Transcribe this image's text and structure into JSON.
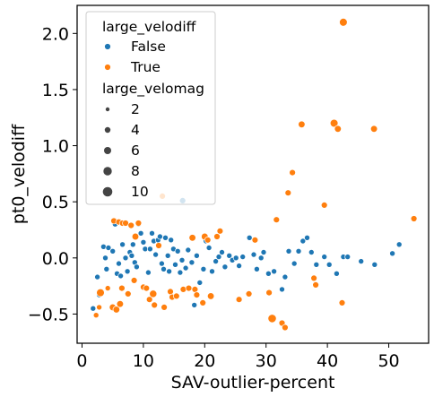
{
  "chart_data": {
    "type": "scatter",
    "xlabel": "SAV-outlier-percent",
    "ylabel": "pt0_velodiff",
    "xlim": [
      -0.8,
      56.5
    ],
    "ylim": [
      -0.76,
      2.25
    ],
    "xticks": [
      0,
      10,
      20,
      30,
      40,
      50
    ],
    "yticks": [
      -0.5,
      0.0,
      0.5,
      1.0,
      1.5,
      2.0
    ],
    "xtick_labels": [
      "0",
      "10",
      "20",
      "30",
      "40",
      "50"
    ],
    "ytick_labels": [
      "−0.5",
      "0.0",
      "0.5",
      "1.0",
      "1.5",
      "2.0"
    ],
    "grid": false,
    "legend": {
      "placement": "top-left",
      "hue_title": "large_velodiff",
      "hue_entries": [
        {
          "label": "False",
          "color": "#1f77b4"
        },
        {
          "label": "True",
          "color": "#ff7f0e"
        }
      ],
      "size_title": "large_velomag",
      "size_entries": [
        {
          "label": "2",
          "size": 2
        },
        {
          "label": "4",
          "size": 4
        },
        {
          "label": "6",
          "size": 6
        },
        {
          "label": "8",
          "size": 8
        },
        {
          "label": "10",
          "size": 10
        }
      ]
    },
    "series": [
      {
        "name": "False",
        "color": "#1f77b4",
        "points": [
          [
            1.8,
            -0.45,
            2
          ],
          [
            2.5,
            -0.17,
            2
          ],
          [
            2.8,
            -0.33,
            2
          ],
          [
            3.5,
            0.1,
            2
          ],
          [
            3.8,
            0.0,
            2
          ],
          [
            4.0,
            -0.1,
            2
          ],
          [
            4.3,
            0.09,
            2
          ],
          [
            5.0,
            0.06,
            2
          ],
          [
            5.4,
            0.3,
            2
          ],
          [
            5.7,
            -0.14,
            2
          ],
          [
            6.0,
            -0.05,
            2
          ],
          [
            6.3,
            -0.16,
            2
          ],
          [
            6.6,
            0.12,
            2
          ],
          [
            7.1,
            0.0,
            2
          ],
          [
            7.4,
            -0.12,
            2
          ],
          [
            7.8,
            0.05,
            2
          ],
          [
            8.1,
            0.02,
            2
          ],
          [
            8.3,
            0.12,
            2
          ],
          [
            8.6,
            -0.04,
            2
          ],
          [
            8.9,
            -0.08,
            2
          ],
          [
            9.2,
            0.3,
            2
          ],
          [
            9.6,
            0.22,
            2
          ],
          [
            10.0,
            0.14,
            2
          ],
          [
            10.3,
            0.08,
            2
          ],
          [
            10.8,
            -0.13,
            2
          ],
          [
            11.1,
            0.08,
            2
          ],
          [
            11.4,
            0.22,
            2
          ],
          [
            11.7,
            0.15,
            2
          ],
          [
            12.0,
            0.03,
            2
          ],
          [
            12.4,
            0.16,
            2
          ],
          [
            12.7,
            0.19,
            2
          ],
          [
            13.0,
            -0.05,
            2
          ],
          [
            13.3,
            -0.1,
            2
          ],
          [
            13.6,
            0.18,
            2
          ],
          [
            14.0,
            0.02,
            2
          ],
          [
            14.2,
            -0.12,
            2
          ],
          [
            14.5,
            0.16,
            2
          ],
          [
            14.9,
            0.08,
            2
          ],
          [
            15.2,
            -0.06,
            2
          ],
          [
            15.6,
            0.06,
            2
          ],
          [
            16.0,
            -0.13,
            2
          ],
          [
            16.3,
            -0.02,
            2
          ],
          [
            16.4,
            0.51,
            3
          ],
          [
            16.9,
            -0.09,
            2
          ],
          [
            17.3,
            0.07,
            2
          ],
          [
            17.9,
            -0.04,
            2
          ],
          [
            18.3,
            -0.42,
            2
          ],
          [
            18.7,
            0.02,
            2
          ],
          [
            19.2,
            -0.22,
            2
          ],
          [
            19.8,
            -0.1,
            2
          ],
          [
            20.2,
            0.15,
            2
          ],
          [
            20.7,
            0.09,
            2
          ],
          [
            21.2,
            -0.12,
            2
          ],
          [
            21.8,
            -0.03,
            2
          ],
          [
            22.3,
            0.01,
            2
          ],
          [
            22.8,
            0.05,
            2
          ],
          [
            23.3,
            -0.08,
            2
          ],
          [
            24.0,
            0.02,
            2
          ],
          [
            24.5,
            -0.02,
            2
          ],
          [
            25.1,
            0.0,
            2
          ],
          [
            25.6,
            -0.07,
            2
          ],
          [
            26.2,
            0.01,
            2
          ],
          [
            27.3,
            0.18,
            2
          ],
          [
            28.0,
            0.03,
            2
          ],
          [
            28.5,
            -0.1,
            2
          ],
          [
            29.2,
            0.0,
            2
          ],
          [
            29.6,
            0.05,
            2
          ],
          [
            30.4,
            -0.14,
            2
          ],
          [
            31.3,
            -0.12,
            2
          ],
          [
            32.6,
            -0.28,
            2
          ],
          [
            33.1,
            -0.17,
            2
          ],
          [
            33.7,
            0.06,
            2
          ],
          [
            34.6,
            -0.05,
            2
          ],
          [
            35.3,
            0.06,
            2
          ],
          [
            36.0,
            0.15,
            2
          ],
          [
            36.7,
            0.18,
            2
          ],
          [
            37.4,
            0.05,
            2
          ],
          [
            38.2,
            -0.06,
            2
          ],
          [
            39.5,
            0.01,
            2
          ],
          [
            40.3,
            -0.06,
            2
          ],
          [
            41.5,
            -0.14,
            2
          ],
          [
            42.6,
            0.01,
            2
          ],
          [
            43.3,
            0.01,
            2
          ],
          [
            45.5,
            -0.03,
            2
          ],
          [
            47.7,
            -0.06,
            2
          ],
          [
            50.6,
            0.04,
            2
          ],
          [
            51.7,
            0.12,
            2
          ]
        ]
      },
      {
        "name": "True",
        "color": "#ff7f0e",
        "points": [
          [
            2.3,
            -0.51,
            2
          ],
          [
            2.8,
            -0.44,
            2
          ],
          [
            3.0,
            -0.31,
            6
          ],
          [
            4.2,
            -0.27,
            2
          ],
          [
            5.0,
            -0.44,
            4
          ],
          [
            5.6,
            -0.46,
            4
          ],
          [
            6.2,
            -0.41,
            4
          ],
          [
            5.2,
            0.33,
            3
          ],
          [
            6.0,
            0.32,
            3
          ],
          [
            6.5,
            -0.27,
            3
          ],
          [
            6.6,
            0.31,
            3
          ],
          [
            7.1,
            0.31,
            3
          ],
          [
            7.5,
            -0.32,
            3
          ],
          [
            8.0,
            0.29,
            3
          ],
          [
            8.5,
            -0.2,
            3
          ],
          [
            8.7,
            0.19,
            4
          ],
          [
            9.2,
            0.31,
            3
          ],
          [
            10.0,
            -0.26,
            3
          ],
          [
            10.5,
            -0.27,
            3
          ],
          [
            11.0,
            -0.37,
            3
          ],
          [
            11.6,
            -0.32,
            5
          ],
          [
            11.8,
            -0.42,
            3
          ],
          [
            12.5,
            0.11,
            3
          ],
          [
            13.1,
            0.55,
            3
          ],
          [
            13.4,
            -0.44,
            3
          ],
          [
            14.4,
            -0.3,
            3
          ],
          [
            14.7,
            -0.35,
            3
          ],
          [
            15.4,
            -0.34,
            3
          ],
          [
            16.5,
            -0.28,
            3
          ],
          [
            17.4,
            -0.27,
            3
          ],
          [
            18.0,
            0.18,
            4
          ],
          [
            18.4,
            -0.28,
            3
          ],
          [
            18.7,
            -0.33,
            3
          ],
          [
            19.7,
            -0.4,
            3
          ],
          [
            20.0,
            0.19,
            4
          ],
          [
            20.5,
            0.16,
            3
          ],
          [
            21.0,
            -0.34,
            4
          ],
          [
            22.0,
            0.19,
            3
          ],
          [
            22.5,
            0.24,
            3
          ],
          [
            25.6,
            -0.37,
            3
          ],
          [
            27.2,
            -0.32,
            3
          ],
          [
            28.2,
            0.16,
            3
          ],
          [
            30.5,
            -0.31,
            3
          ],
          [
            31.0,
            -0.54,
            7
          ],
          [
            31.7,
            0.34,
            3
          ],
          [
            32.6,
            -0.58,
            3
          ],
          [
            33.1,
            -0.62,
            3
          ],
          [
            33.6,
            0.58,
            3
          ],
          [
            34.3,
            0.76,
            3
          ],
          [
            35.8,
            1.19,
            4
          ],
          [
            37.8,
            -0.18,
            3
          ],
          [
            38.1,
            -0.24,
            3
          ],
          [
            39.5,
            0.47,
            3
          ],
          [
            41.1,
            1.2,
            6
          ],
          [
            41.7,
            1.15,
            4
          ],
          [
            42.4,
            -0.4,
            3
          ],
          [
            42.6,
            2.1,
            6
          ],
          [
            47.6,
            1.15,
            4
          ],
          [
            54.1,
            0.35,
            3
          ]
        ]
      }
    ]
  }
}
